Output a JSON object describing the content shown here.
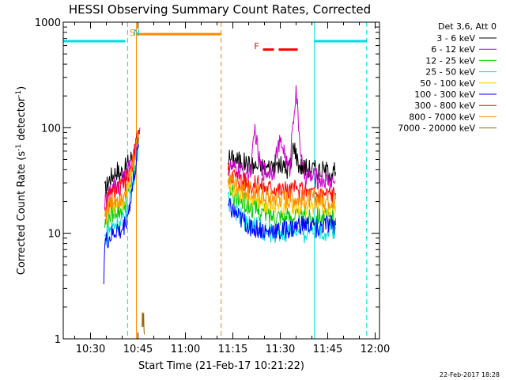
{
  "chart_data": {
    "type": "line",
    "title": "HESSI Observing Summary Count Rates, Corrected",
    "xlabel": "Start Time (21-Feb-17 10:21:22)",
    "ylabel_parts": [
      "Corrected Count Rate (s",
      "-1",
      " detector",
      "-1",
      ")"
    ],
    "x_unit": "minutes since 10:00",
    "xlim": [
      21.37,
      121.37
    ],
    "ylim": [
      1,
      1000
    ],
    "yscale": "log",
    "x_ticks": [
      {
        "v": 30,
        "label": "10:30"
      },
      {
        "v": 45,
        "label": "10:45"
      },
      {
        "v": 60,
        "label": "11:00"
      },
      {
        "v": 75,
        "label": "11:15"
      },
      {
        "v": 90,
        "label": "11:30"
      },
      {
        "v": 105,
        "label": "11:45"
      },
      {
        "v": 120,
        "label": "12:00"
      }
    ],
    "y_ticks": [
      {
        "v": 1,
        "label": "1"
      },
      {
        "v": 10,
        "label": "10"
      },
      {
        "v": 100,
        "label": "100"
      },
      {
        "v": 1000,
        "label": "1000"
      }
    ],
    "legend": {
      "header": "Det 3,6, Att 0",
      "placement": "right"
    },
    "series": [
      {
        "name": "3 - 6 keV",
        "color": "#000000",
        "seg1": [
          [
            34.5,
            25
          ],
          [
            36,
            33
          ],
          [
            37.5,
            37
          ],
          [
            38.5,
            40
          ],
          [
            39.2,
            36
          ],
          [
            40.2,
            40
          ],
          [
            41.2,
            42
          ],
          [
            42,
            48
          ],
          [
            42.8,
            52
          ],
          [
            43.5,
            55
          ],
          [
            44.5,
            70
          ],
          [
            45.2,
            82
          ],
          [
            45.6,
            88
          ]
        ],
        "seg2": [
          [
            73.5,
            52
          ],
          [
            76,
            50
          ],
          [
            78,
            48
          ],
          [
            80,
            45
          ],
          [
            82,
            43
          ],
          [
            84,
            43
          ],
          [
            86,
            42
          ],
          [
            88,
            45
          ],
          [
            90,
            44
          ],
          [
            92,
            40
          ],
          [
            93.5,
            45
          ],
          [
            94.2,
            75
          ],
          [
            95,
            55
          ],
          [
            96,
            44
          ],
          [
            98,
            42
          ],
          [
            100,
            41
          ],
          [
            102,
            40
          ],
          [
            104,
            39
          ],
          [
            106,
            38
          ],
          [
            107.5,
            38
          ]
        ]
      },
      {
        "name": "6 - 12 keV",
        "color": "#cc00cc",
        "seg1": [
          [
            34.5,
            20
          ],
          [
            36,
            26
          ],
          [
            37.5,
            29
          ],
          [
            38.5,
            30
          ],
          [
            39.2,
            29
          ],
          [
            40.2,
            32
          ],
          [
            41.2,
            35
          ],
          [
            42,
            40
          ],
          [
            42.8,
            45
          ],
          [
            43.5,
            52
          ],
          [
            44.5,
            75
          ],
          [
            45.2,
            95
          ],
          [
            45.6,
            100
          ]
        ],
        "seg2": [
          [
            73.5,
            42
          ],
          [
            76,
            40
          ],
          [
            78,
            38
          ],
          [
            80,
            37
          ],
          [
            81,
            45
          ],
          [
            82,
            100
          ],
          [
            83,
            55
          ],
          [
            84,
            40
          ],
          [
            86,
            38
          ],
          [
            88,
            40
          ],
          [
            89,
            62
          ],
          [
            90,
            70
          ],
          [
            91,
            66
          ],
          [
            92,
            45
          ],
          [
            93,
            40
          ],
          [
            94,
            120
          ],
          [
            95,
            215
          ],
          [
            96,
            90
          ],
          [
            97,
            40
          ],
          [
            98,
            35
          ],
          [
            100,
            34
          ],
          [
            102,
            33
          ],
          [
            104,
            32
          ],
          [
            106,
            31
          ],
          [
            107.5,
            31
          ]
        ]
      },
      {
        "name": "12 - 25 keV",
        "color": "#00cc00",
        "seg1": [
          [
            34.5,
            12
          ],
          [
            36,
            15
          ],
          [
            37.5,
            16
          ],
          [
            38.5,
            17
          ],
          [
            39.2,
            16
          ],
          [
            40.2,
            18
          ],
          [
            41.2,
            20
          ],
          [
            42,
            24
          ],
          [
            42.8,
            30
          ],
          [
            43.5,
            40
          ],
          [
            44.5,
            60
          ],
          [
            45.2,
            80
          ]
        ],
        "seg2": [
          [
            73.5,
            26
          ],
          [
            76,
            22
          ],
          [
            78,
            20
          ],
          [
            80,
            18
          ],
          [
            82,
            17
          ],
          [
            84,
            16
          ],
          [
            86,
            15
          ],
          [
            88,
            15
          ],
          [
            90,
            15
          ],
          [
            92,
            14
          ],
          [
            94,
            15
          ],
          [
            96,
            14
          ],
          [
            98,
            14
          ],
          [
            100,
            14
          ],
          [
            102,
            15
          ],
          [
            104,
            14
          ],
          [
            106,
            14
          ],
          [
            107.5,
            14
          ]
        ]
      },
      {
        "name": "25 - 50 keV",
        "color": "#00dddd",
        "seg1": [
          [
            34.5,
            9
          ],
          [
            36,
            11
          ],
          [
            37.5,
            12
          ],
          [
            38.5,
            13
          ],
          [
            39.2,
            12
          ],
          [
            40.2,
            13
          ],
          [
            41.2,
            15
          ],
          [
            42,
            18
          ],
          [
            42.8,
            24
          ],
          [
            43.5,
            32
          ],
          [
            44.5,
            50
          ],
          [
            45.2,
            70
          ]
        ],
        "seg2": [
          [
            73.5,
            20
          ],
          [
            76,
            16
          ],
          [
            78,
            14
          ],
          [
            80,
            12
          ],
          [
            82,
            12
          ],
          [
            84,
            11
          ],
          [
            86,
            10
          ],
          [
            88,
            10
          ],
          [
            90,
            10
          ],
          [
            92,
            10
          ],
          [
            94,
            11
          ],
          [
            96,
            10
          ],
          [
            98,
            10
          ],
          [
            100,
            11
          ],
          [
            102,
            11
          ],
          [
            104,
            10
          ],
          [
            106,
            11
          ],
          [
            107.5,
            11
          ]
        ]
      },
      {
        "name": "50 - 100 keV",
        "color": "#ffcc00",
        "seg1": [
          [
            34.5,
            14
          ],
          [
            36,
            17
          ],
          [
            37.5,
            19
          ],
          [
            38.5,
            20
          ],
          [
            39.2,
            19
          ],
          [
            40.2,
            21
          ],
          [
            41.2,
            24
          ],
          [
            42,
            28
          ],
          [
            42.8,
            34
          ],
          [
            43.5,
            45
          ],
          [
            44.5,
            65
          ],
          [
            45.2,
            85
          ]
        ],
        "seg2": [
          [
            73.5,
            30
          ],
          [
            76,
            26
          ],
          [
            78,
            24
          ],
          [
            80,
            22
          ],
          [
            82,
            21
          ],
          [
            84,
            20
          ],
          [
            86,
            19
          ],
          [
            88,
            19
          ],
          [
            90,
            19
          ],
          [
            92,
            18
          ],
          [
            94,
            19
          ],
          [
            96,
            18
          ],
          [
            98,
            18
          ],
          [
            100,
            18
          ],
          [
            102,
            19
          ],
          [
            104,
            18
          ],
          [
            106,
            18
          ],
          [
            107.5,
            18
          ]
        ]
      },
      {
        "name": "100 - 300 keV",
        "color": "#0000ff",
        "seg1": [
          [
            34.2,
            4
          ],
          [
            34.5,
            8
          ],
          [
            36,
            9
          ],
          [
            37.5,
            10
          ],
          [
            38.5,
            11
          ],
          [
            39.2,
            10
          ],
          [
            40.2,
            11
          ],
          [
            41.2,
            13
          ],
          [
            42,
            16
          ],
          [
            42.8,
            22
          ],
          [
            43.5,
            30
          ],
          [
            44.5,
            48
          ],
          [
            45.2,
            65
          ]
        ],
        "seg2": [
          [
            73.5,
            18
          ],
          [
            76,
            15
          ],
          [
            78,
            13
          ],
          [
            80,
            12
          ],
          [
            82,
            11
          ],
          [
            84,
            11
          ],
          [
            86,
            10
          ],
          [
            88,
            11
          ],
          [
            90,
            10
          ],
          [
            92,
            11
          ],
          [
            94,
            11
          ],
          [
            96,
            12
          ],
          [
            98,
            12
          ],
          [
            100,
            12
          ],
          [
            102,
            11
          ],
          [
            104,
            12
          ],
          [
            106,
            12
          ],
          [
            107.5,
            12
          ]
        ]
      },
      {
        "name": "300 - 800 keV",
        "color": "#ff0000",
        "seg1": [
          [
            34.5,
            18
          ],
          [
            36,
            22
          ],
          [
            37.5,
            25
          ],
          [
            38.5,
            26
          ],
          [
            39.2,
            25
          ],
          [
            40.2,
            28
          ],
          [
            41.2,
            31
          ],
          [
            42,
            35
          ],
          [
            42.8,
            40
          ],
          [
            43.5,
            50
          ],
          [
            44.5,
            72
          ],
          [
            45.2,
            90
          ],
          [
            45.6,
            95
          ]
        ],
        "seg2": [
          [
            73.5,
            40
          ],
          [
            76,
            35
          ],
          [
            78,
            32
          ],
          [
            80,
            30
          ],
          [
            82,
            29
          ],
          [
            84,
            28
          ],
          [
            86,
            27
          ],
          [
            88,
            28
          ],
          [
            90,
            26
          ],
          [
            92,
            25
          ],
          [
            94,
            26
          ],
          [
            96,
            25
          ],
          [
            98,
            25
          ],
          [
            100,
            24
          ],
          [
            102,
            24
          ],
          [
            104,
            24
          ],
          [
            106,
            24
          ],
          [
            107.5,
            24
          ]
        ]
      },
      {
        "name": "800 - 7000 keV",
        "color": "#ff8800",
        "seg1": [
          [
            34.5,
            15
          ],
          [
            36,
            19
          ],
          [
            37.5,
            21
          ],
          [
            38.5,
            22
          ],
          [
            39.2,
            21
          ],
          [
            40.2,
            24
          ],
          [
            41.2,
            27
          ],
          [
            42,
            31
          ],
          [
            42.8,
            37
          ],
          [
            43.5,
            48
          ],
          [
            44.5,
            68
          ],
          [
            45.2,
            88
          ]
        ],
        "seg2": [
          [
            73.5,
            34
          ],
          [
            76,
            30
          ],
          [
            78,
            27
          ],
          [
            80,
            25
          ],
          [
            82,
            24
          ],
          [
            84,
            23
          ],
          [
            86,
            22
          ],
          [
            88,
            22
          ],
          [
            90,
            22
          ],
          [
            92,
            21
          ],
          [
            94,
            22
          ],
          [
            96,
            21
          ],
          [
            98,
            21
          ],
          [
            100,
            21
          ],
          [
            102,
            22
          ],
          [
            104,
            21
          ],
          [
            106,
            21
          ],
          [
            107.5,
            21
          ]
        ]
      },
      {
        "name": "7000 - 20000 keV",
        "color": "#996600",
        "seg1": [
          [
            46.2,
            1.15
          ],
          [
            46.4,
            1.9
          ],
          [
            46.6,
            1.25
          ],
          [
            46.8,
            1.7
          ],
          [
            47,
            1.1
          ]
        ],
        "seg2": []
      }
    ],
    "annotations": [
      {
        "label": "S",
        "color": "#ff8800",
        "x": 43.2
      },
      {
        "label": "N",
        "color": "#00cccc",
        "x": 44.6
      },
      {
        "label": "F",
        "color": "#ff0000",
        "x": 82.5
      }
    ],
    "bars": [
      {
        "color": "#00dddd",
        "x0": 21.37,
        "x1": 41.0,
        "y": 660
      },
      {
        "color": "#ff8800",
        "x0": 44.5,
        "x1": 71.3,
        "y": 770
      },
      {
        "color": "#ff0000",
        "x0": 84.5,
        "x1": 88.0,
        "y": 550,
        "dashed": true
      },
      {
        "color": "#ff0000",
        "x0": 89.5,
        "x1": 95.5,
        "y": 550,
        "dashed": true
      },
      {
        "color": "#00dddd",
        "x0": 100.8,
        "x1": 117.3,
        "y": 660
      }
    ],
    "vlines": [
      {
        "x": 21.37,
        "color": "#00dddd",
        "dash": false
      },
      {
        "x": 41.7,
        "color": "#00dddd",
        "dash": true
      },
      {
        "x": 44.5,
        "color": "#ff8800",
        "dash": false
      },
      {
        "x": 71.3,
        "color": "#ff8800",
        "dash": true
      },
      {
        "x": 100.8,
        "color": "#00dddd",
        "dash": false
      },
      {
        "x": 117.3,
        "color": "#00dddd",
        "dash": true
      }
    ]
  },
  "footer": {
    "timestamp": "22-Feb-2017 18:28"
  }
}
